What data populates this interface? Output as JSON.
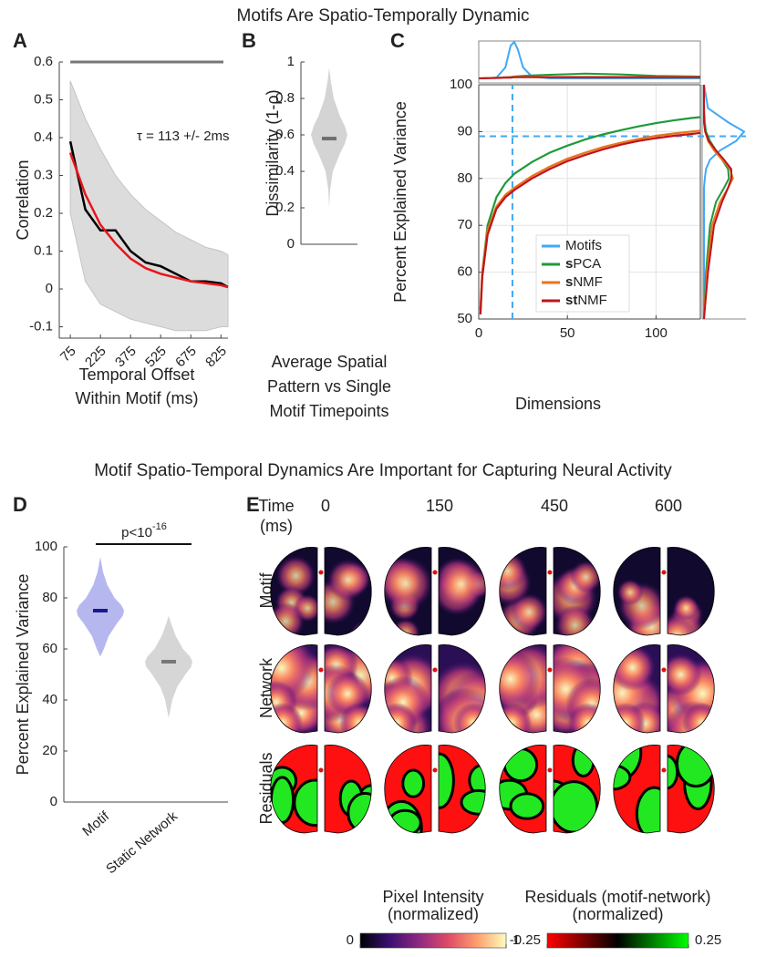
{
  "figure_titles": [
    "Motifs Are Spatio-Temporally Dynamic",
    "Motif Spatio-Temporal Dynamics Are Important for Capturing Neural Activity"
  ],
  "chart_data": [
    {
      "panel": "A",
      "type": "line",
      "ylabel": "Correlation",
      "xlabel": [
        "Temporal Offset",
        "Within Motif (ms)"
      ],
      "annotation": "τ = 113 +/- 2ms",
      "x": [
        75,
        150,
        225,
        300,
        375,
        450,
        525,
        600,
        675,
        750,
        825,
        860
      ],
      "xlim": [
        20,
        860
      ],
      "xticks": [
        75,
        225,
        375,
        525,
        675,
        825
      ],
      "ylim": [
        -0.13,
        0.6
      ],
      "yticks": [
        -0.1,
        0,
        0.1,
        0.2,
        0.3,
        0.4,
        0.5,
        0.6
      ],
      "reference_line": 0.6,
      "band": {
        "color": "#dcdcdc",
        "upper": [
          0.55,
          0.45,
          0.37,
          0.3,
          0.25,
          0.21,
          0.18,
          0.15,
          0.13,
          0.11,
          0.1,
          0.09
        ],
        "lower": [
          0.2,
          0.02,
          -0.04,
          -0.06,
          -0.08,
          -0.09,
          -0.1,
          -0.11,
          -0.11,
          -0.11,
          -0.1,
          -0.1
        ]
      },
      "series": [
        {
          "color": "#000000",
          "values": [
            0.39,
            0.21,
            0.155,
            0.155,
            0.1,
            0.07,
            0.06,
            0.04,
            0.02,
            0.02,
            0.015,
            0.005
          ]
        },
        {
          "color": "#e8141b",
          "values": [
            0.36,
            0.25,
            0.17,
            0.12,
            0.08,
            0.055,
            0.04,
            0.03,
            0.02,
            0.015,
            0.01,
            0.005
          ]
        }
      ]
    },
    {
      "panel": "B",
      "type": "violin",
      "ylabel": "Dissimilarity (1-ρ)",
      "xlabel": [
        "Average Spatial",
        "Pattern vs Single",
        "Motif Timepoints"
      ],
      "ylim": [
        0,
        1
      ],
      "yticks": [
        0,
        0.2,
        0.4,
        0.6,
        0.8,
        1
      ],
      "violins": [
        {
          "color": "#d4d4d4",
          "median_color": "#707070",
          "median": 0.58,
          "profile_y": [
            0.2,
            0.3,
            0.4,
            0.5,
            0.55,
            0.6,
            0.65,
            0.7,
            0.8,
            0.9,
            0.97
          ],
          "profile_width": [
            0,
            0.05,
            0.2,
            0.6,
            0.85,
            1,
            0.85,
            0.6,
            0.25,
            0.08,
            0
          ]
        }
      ]
    },
    {
      "panel": "C",
      "type": "line",
      "ylabel": "Percent Explained Variance",
      "xlabel": "Dimensions",
      "x": [
        1,
        2,
        5,
        10,
        15,
        20,
        30,
        40,
        50,
        60,
        70,
        80,
        90,
        100,
        110,
        120,
        125
      ],
      "xlim": [
        0,
        125
      ],
      "xticks": [
        0,
        50,
        100
      ],
      "ylim": [
        50,
        100
      ],
      "yticks": [
        50,
        60,
        70,
        80,
        90,
        100
      ],
      "grid": true,
      "marginal_x_grid": [
        0,
        10,
        15,
        18,
        20,
        22,
        25,
        30,
        40,
        60,
        80,
        100,
        125
      ],
      "marginal_y_grid": [
        50,
        60,
        70,
        75,
        78,
        80,
        82,
        84,
        86,
        88,
        90,
        92,
        95,
        100
      ],
      "series": [
        {
          "name": "Motifs",
          "color": "#3fa9f5",
          "point_x": 19,
          "point_y": 89,
          "marginal_x": [
            0,
            0.02,
            0.3,
            0.9,
            1,
            0.8,
            0.3,
            0.05,
            0,
            0,
            0,
            0,
            0
          ],
          "marginal_y": [
            0,
            0,
            0,
            0,
            0,
            0.02,
            0.05,
            0.15,
            0.4,
            0.8,
            1,
            0.6,
            0.1,
            0
          ]
        },
        {
          "name": "sPCA",
          "color": "#1e9a3a",
          "values": [
            52,
            60,
            70,
            76,
            79,
            81,
            83.5,
            85.5,
            87,
            88.3,
            89.4,
            90.3,
            91.1,
            91.8,
            92.4,
            92.9,
            93.1
          ],
          "marginal_x": [
            0,
            0.02,
            0.03,
            0.04,
            0.05,
            0.06,
            0.07,
            0.08,
            0.1,
            0.13,
            0.11,
            0.07,
            0.05
          ],
          "marginal_y": [
            0,
            0.05,
            0.15,
            0.3,
            0.5,
            0.62,
            0.6,
            0.45,
            0.3,
            0.15,
            0.05,
            0.02,
            0,
            0
          ]
        },
        {
          "name": "sNMF",
          "color": "#e8731a",
          "values": [
            52,
            60,
            69,
            74,
            76.5,
            78,
            80.5,
            82.5,
            84.2,
            85.5,
            86.7,
            87.6,
            88.4,
            89.1,
            89.6,
            90,
            90.2
          ],
          "marginal_x": [
            0,
            0.02,
            0.03,
            0.03,
            0.04,
            0.04,
            0.04,
            0.04,
            0.04,
            0.04,
            0.04,
            0.04,
            0.04
          ],
          "marginal_y": [
            0,
            0.07,
            0.2,
            0.4,
            0.6,
            0.72,
            0.65,
            0.45,
            0.25,
            0.1,
            0.03,
            0,
            0,
            0
          ]
        },
        {
          "name": "stNMF",
          "color": "#c0131c",
          "values": [
            51,
            59,
            68,
            73.5,
            76,
            77.5,
            80,
            82,
            83.7,
            85,
            86.2,
            87.2,
            88,
            88.6,
            89.1,
            89.5,
            89.7
          ],
          "marginal_x": [
            0,
            0.01,
            0.02,
            0.02,
            0.03,
            0.03,
            0.03,
            0.03,
            0.03,
            0.03,
            0.03,
            0.03,
            0.03
          ],
          "marginal_y": [
            0,
            0.1,
            0.25,
            0.45,
            0.6,
            0.68,
            0.68,
            0.5,
            0.3,
            0.12,
            0.03,
            0,
            0,
            0
          ]
        }
      ]
    },
    {
      "panel": "D",
      "type": "violin",
      "ylabel": "Percent Explained Variance",
      "categories": [
        "Motif",
        "Static Network"
      ],
      "annotation": {
        "text": "p<10",
        "superscript": "-16"
      },
      "ylim": [
        0,
        100
      ],
      "yticks": [
        0,
        20,
        40,
        60,
        80,
        100
      ],
      "violins": [
        {
          "color": "#b7b7f0",
          "median_color": "#1a1a8c",
          "median": 75,
          "profile_y": [
            57,
            60,
            65,
            70,
            73,
            75,
            77,
            80,
            85,
            90,
            96
          ],
          "profile_width": [
            0,
            0.15,
            0.35,
            0.7,
            0.95,
            1,
            0.9,
            0.6,
            0.3,
            0.12,
            0
          ]
        },
        {
          "color": "#d6d6d6",
          "median_color": "#777777",
          "median": 55,
          "profile_y": [
            33,
            40,
            45,
            50,
            53,
            55,
            57,
            60,
            65,
            70,
            73
          ],
          "profile_width": [
            0,
            0.15,
            0.35,
            0.7,
            0.95,
            1,
            0.9,
            0.6,
            0.3,
            0.1,
            0
          ]
        }
      ]
    }
  ],
  "image_grid": {
    "panel": "E",
    "corner_label": [
      "Time",
      "(ms)"
    ],
    "times": [
      0,
      150,
      450,
      600
    ],
    "rows": [
      "Motif",
      "Network",
      "Residuals"
    ],
    "colorbars": [
      {
        "label": [
          "Pixel Intensity",
          "(normalized)"
        ],
        "ticks": [
          0,
          1
        ],
        "colors": [
          "#000004",
          "#3b0f70",
          "#8c2981",
          "#de4968",
          "#fe9f6d",
          "#fcfdbf"
        ]
      },
      {
        "label": [
          "Residuals (motif-network)",
          "(normalized)"
        ],
        "ticks": [
          -0.25,
          0.25
        ],
        "colors": [
          "#ff0000",
          "#000000",
          "#00ff00"
        ]
      }
    ]
  }
}
